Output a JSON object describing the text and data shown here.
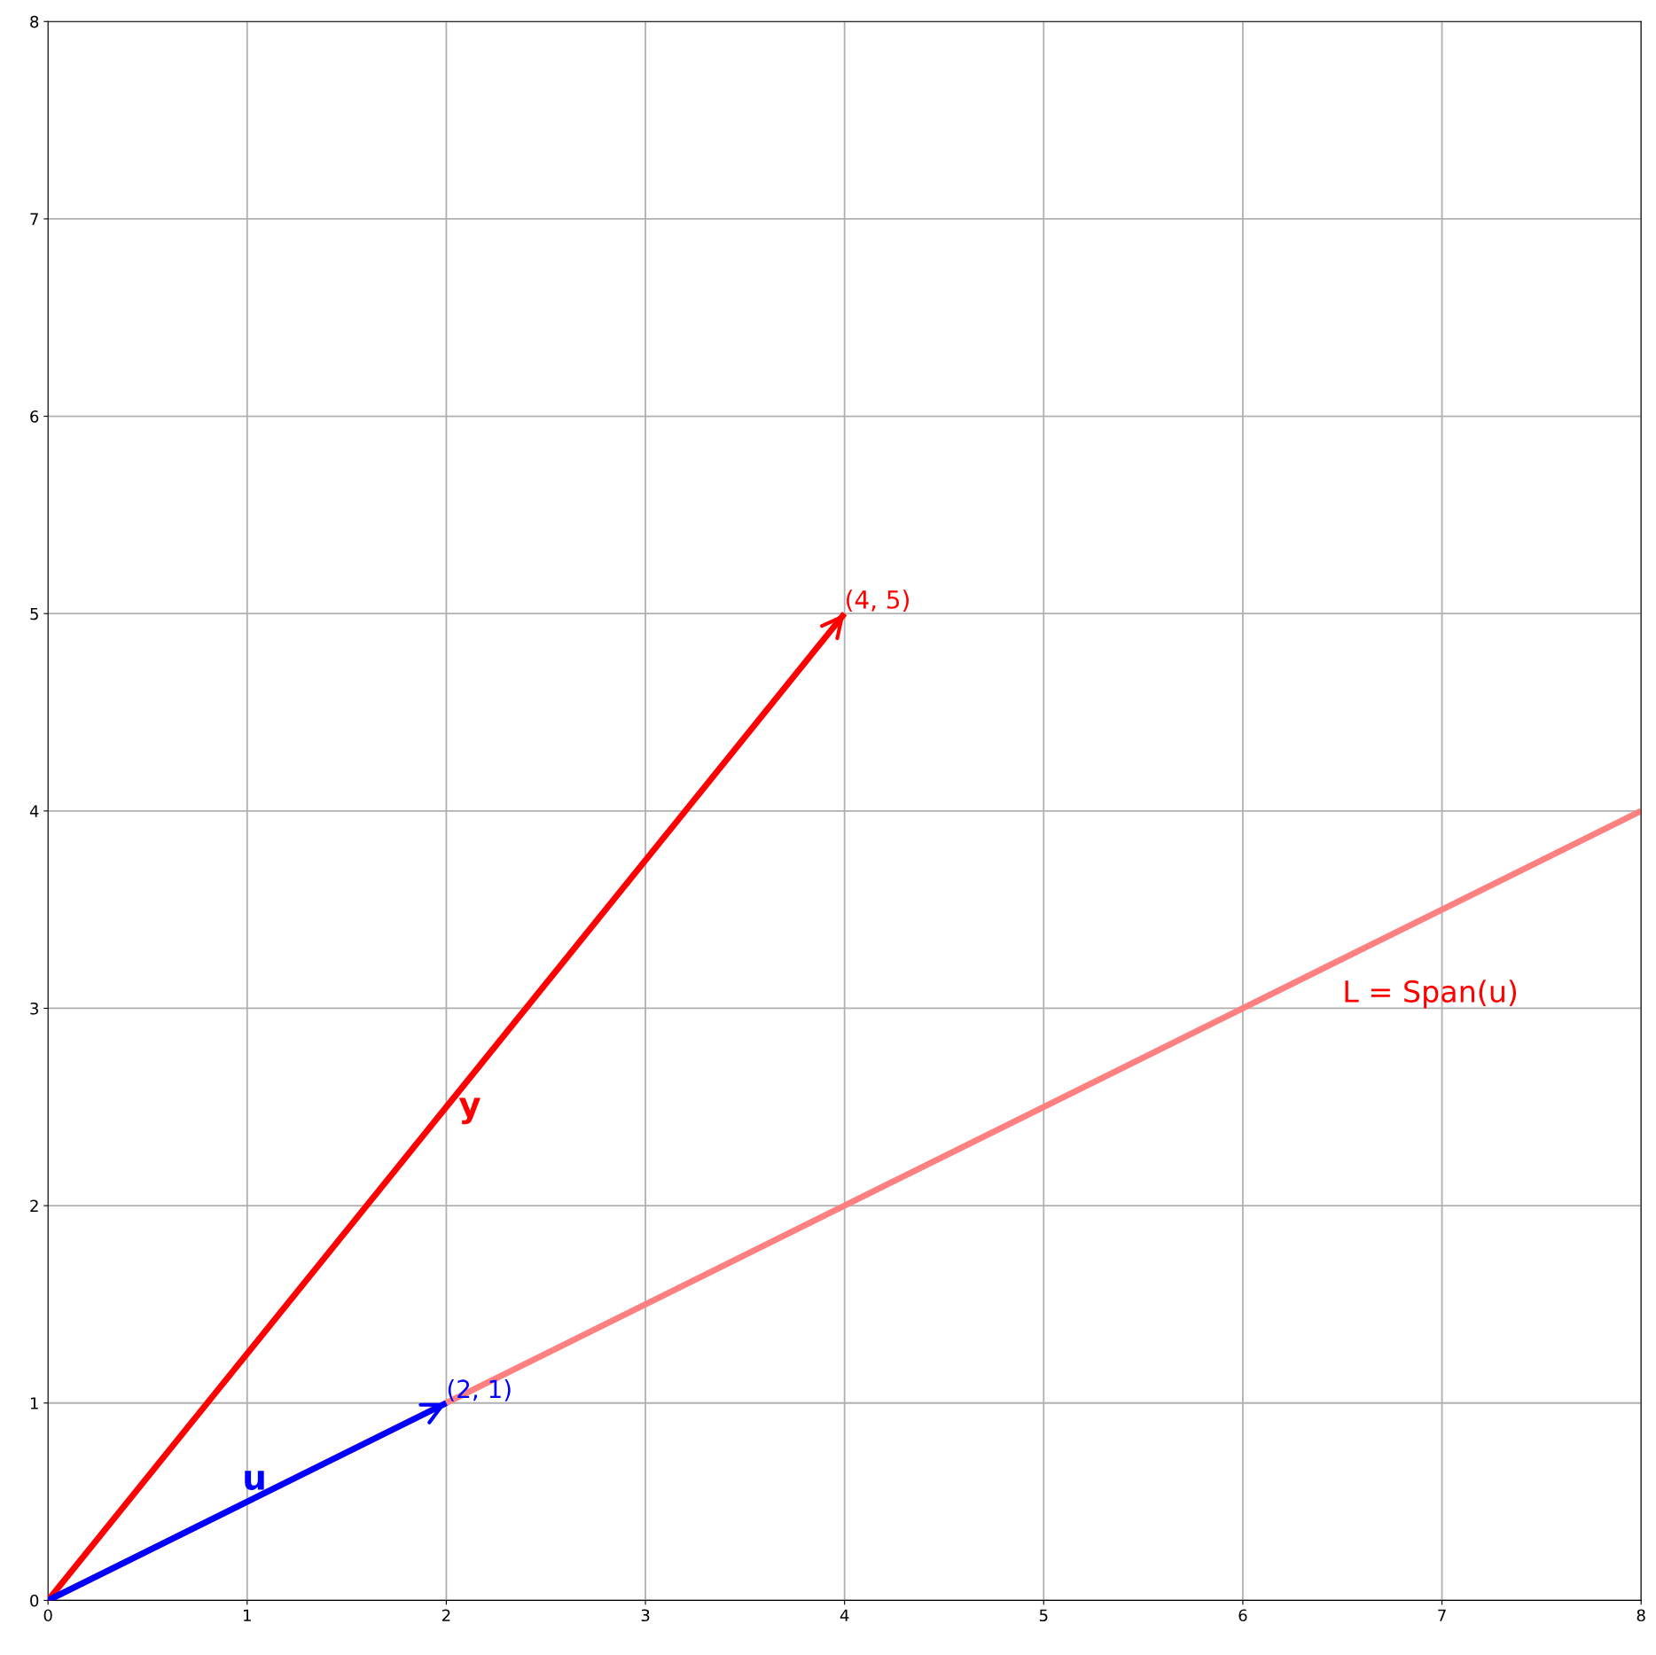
{
  "chart_data": {
    "type": "line",
    "xlim": [
      0,
      8
    ],
    "ylim": [
      0,
      8
    ],
    "xticks": [
      0,
      1,
      2,
      3,
      4,
      5,
      6,
      7,
      8
    ],
    "yticks": [
      0,
      1,
      2,
      3,
      4,
      5,
      6,
      7,
      8
    ],
    "grid": true,
    "marker": "none",
    "line_style": "solid",
    "series": [
      {
        "x": [
          0,
          8
        ],
        "values": [
          0,
          4
        ],
        "color": "#ff8080"
      },
      {
        "x": [
          0,
          4
        ],
        "values": [
          0,
          5
        ],
        "color": "#ff0000",
        "name": "y"
      },
      {
        "x": [
          0,
          2
        ],
        "values": [
          0,
          1
        ],
        "color": "#0000ff",
        "name": "u"
      }
    ],
    "annotations": [
      {
        "text": "(4, 5)",
        "x": 4,
        "y": 5
      },
      {
        "text": "(2, 1)",
        "x": 2,
        "y": 1
      },
      "L = Span(u)"
    ]
  }
}
